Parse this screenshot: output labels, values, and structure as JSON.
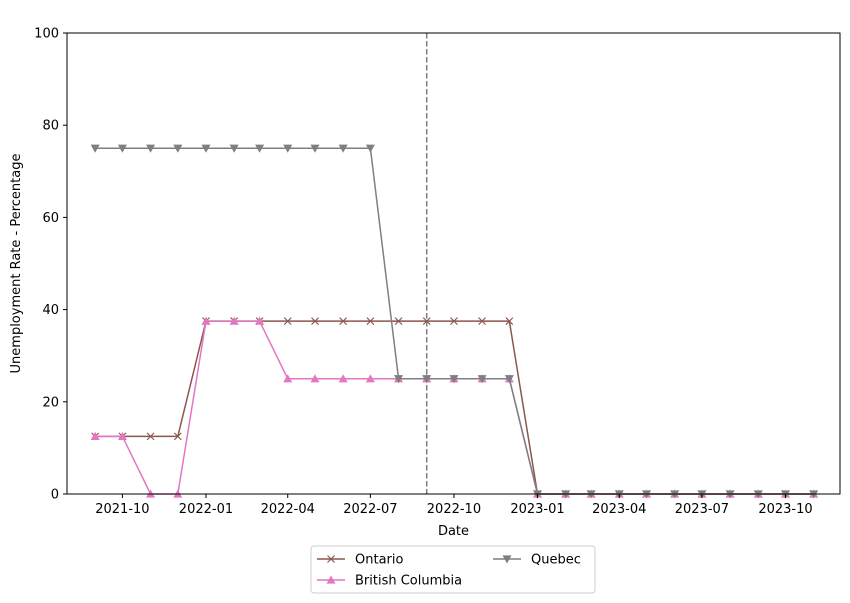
{
  "chart_data": {
    "type": "line",
    "xlabel": "Date",
    "ylabel": "Unemployment Rate - Percentage",
    "ylim": [
      0,
      100
    ],
    "y_ticks": [
      0,
      20,
      40,
      60,
      80,
      100
    ],
    "x_tick_labels": [
      "2021-10",
      "2022-01",
      "2022-04",
      "2022-07",
      "2022-10",
      "2023-01",
      "2023-04",
      "2023-07",
      "2023-10"
    ],
    "x_range": [
      "2021-08-01",
      "2023-11-30"
    ],
    "vertical_line": {
      "date": "2022-09-01",
      "style": "dashed",
      "color": "#7f7f7f"
    },
    "legend_position": "bottom-center",
    "dates": [
      "2021-09",
      "2021-10",
      "2021-11",
      "2021-12",
      "2022-01",
      "2022-02",
      "2022-03",
      "2022-04",
      "2022-05",
      "2022-06",
      "2022-07",
      "2022-08",
      "2022-09",
      "2022-10",
      "2022-11",
      "2022-12",
      "2023-01",
      "2023-02",
      "2023-03",
      "2023-04",
      "2023-05",
      "2023-06",
      "2023-07",
      "2023-08",
      "2023-09",
      "2023-10",
      "2023-11"
    ],
    "series": [
      {
        "name": "Ontario",
        "color": "#8c564b",
        "marker": "x",
        "values": [
          12.5,
          12.5,
          12.5,
          12.5,
          37.5,
          37.5,
          37.5,
          37.5,
          37.5,
          37.5,
          37.5,
          37.5,
          37.5,
          37.5,
          37.5,
          37.5,
          0,
          0,
          0,
          0,
          0,
          0,
          0,
          0,
          0,
          0,
          0
        ]
      },
      {
        "name": "British Columbia",
        "color": "#e377c2",
        "marker": "triangle-up",
        "values": [
          12.5,
          12.5,
          0,
          0,
          37.5,
          37.5,
          37.5,
          25,
          25,
          25,
          25,
          25,
          25,
          25,
          25,
          25,
          0,
          0,
          0,
          0,
          0,
          0,
          0,
          0,
          0,
          0,
          0
        ]
      },
      {
        "name": "Quebec",
        "color": "#7f7f7f",
        "marker": "triangle-down",
        "values": [
          75,
          75,
          75,
          75,
          75,
          75,
          75,
          75,
          75,
          75,
          75,
          25,
          25,
          25,
          25,
          25,
          0,
          0,
          0,
          0,
          0,
          0,
          0,
          0,
          0,
          0,
          0
        ]
      }
    ]
  }
}
